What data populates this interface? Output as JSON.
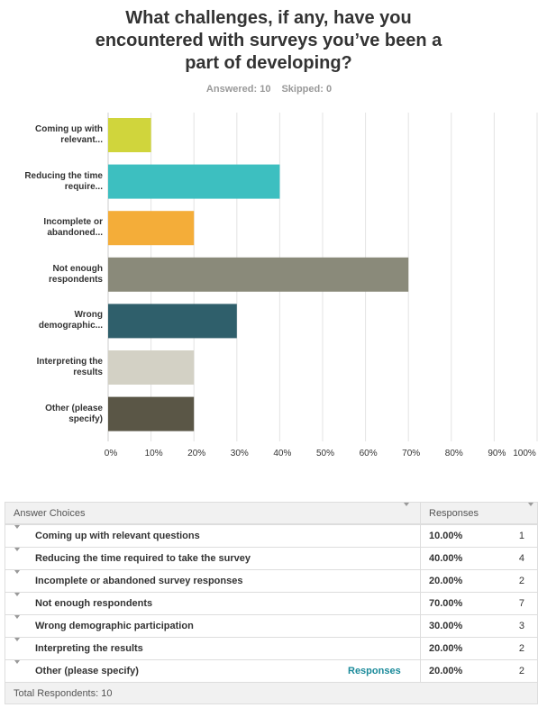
{
  "chart_data": {
    "type": "bar",
    "orientation": "horizontal",
    "title": "What challenges, if any, have you encountered with surveys you’ve been a part of developing?",
    "answered": "Answered: 10",
    "skipped": "Skipped: 0",
    "categories": [
      "Coming up with relevant...",
      "Reducing the time require...",
      "Incomplete or abandoned...",
      "Not enough respondents",
      "Wrong demographic...",
      "Interpreting the results",
      "Other (please specify)"
    ],
    "values": [
      10,
      40,
      20,
      70,
      30,
      20,
      20
    ],
    "colors": [
      "#d0d53c",
      "#3dbfc0",
      "#f4ad39",
      "#8a8a7a",
      "#2f5f6b",
      "#d3d1c5",
      "#5a5646"
    ],
    "xlim": [
      0,
      100
    ],
    "xticks": [
      {
        "value": 0,
        "label": "0%"
      },
      {
        "value": 10,
        "label": "10%"
      },
      {
        "value": 20,
        "label": "20%"
      },
      {
        "value": 30,
        "label": "30%"
      },
      {
        "value": 40,
        "label": "40%"
      },
      {
        "value": 50,
        "label": "50%"
      },
      {
        "value": 60,
        "label": "60%"
      },
      {
        "value": 70,
        "label": "70%"
      },
      {
        "value": 80,
        "label": "80%"
      },
      {
        "value": 90,
        "label": "90%"
      },
      {
        "value": 100,
        "label": "100%"
      }
    ],
    "grid": true
  },
  "table": {
    "headers": [
      "Answer Choices",
      "Responses"
    ],
    "rows": [
      {
        "choice": "Coming up with relevant questions",
        "percent": "10.00%",
        "count": 1
      },
      {
        "choice": "Reducing the time required to take the survey",
        "percent": "40.00%",
        "count": 4
      },
      {
        "choice": "Incomplete or abandoned survey responses",
        "percent": "20.00%",
        "count": 2
      },
      {
        "choice": "Not enough respondents",
        "percent": "70.00%",
        "count": 7
      },
      {
        "choice": "Wrong demographic participation",
        "percent": "30.00%",
        "count": 3
      },
      {
        "choice": "Interpreting the results",
        "percent": "20.00%",
        "count": 2
      },
      {
        "choice": "Other (please specify)",
        "percent": "20.00%",
        "count": 2,
        "link": "Responses"
      }
    ],
    "footer": "Total Respondents: 10"
  }
}
